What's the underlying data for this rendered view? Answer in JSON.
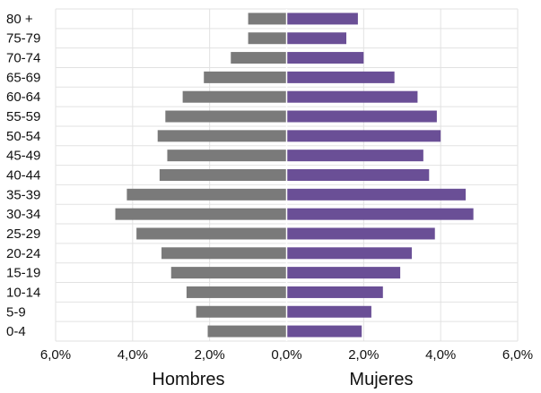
{
  "chart_data": {
    "type": "bar",
    "orientation": "horizontal",
    "categories": [
      "80 +",
      "75-79",
      "70-74",
      "65-69",
      "60-64",
      "55-59",
      "50-54",
      "45-49",
      "40-44",
      "35-39",
      "30-34",
      "25-29",
      "20-24",
      "15-19",
      "10-14",
      "5-9",
      "0-4"
    ],
    "series": [
      {
        "name": "Hombres",
        "color": "#7a7a7a",
        "values": [
          1.0,
          1.0,
          1.45,
          2.15,
          2.7,
          3.15,
          3.35,
          3.1,
          3.3,
          4.15,
          4.45,
          3.9,
          3.25,
          3.0,
          2.6,
          2.35,
          2.05
        ]
      },
      {
        "name": "Mujeres",
        "color": "#6a4f96",
        "values": [
          1.85,
          1.55,
          2.0,
          2.8,
          3.4,
          3.9,
          4.0,
          3.55,
          3.7,
          4.65,
          4.85,
          3.85,
          3.25,
          2.95,
          2.5,
          2.2,
          1.95
        ]
      }
    ],
    "xlim": [
      -6,
      6
    ],
    "xticks": [
      "6,0%",
      "4,0%",
      "2,0%",
      "0,0%",
      "2,0%",
      "4,0%",
      "6,0%"
    ],
    "xlabel_left": "Hombres",
    "xlabel_right": "Mujeres",
    "grid": true
  }
}
